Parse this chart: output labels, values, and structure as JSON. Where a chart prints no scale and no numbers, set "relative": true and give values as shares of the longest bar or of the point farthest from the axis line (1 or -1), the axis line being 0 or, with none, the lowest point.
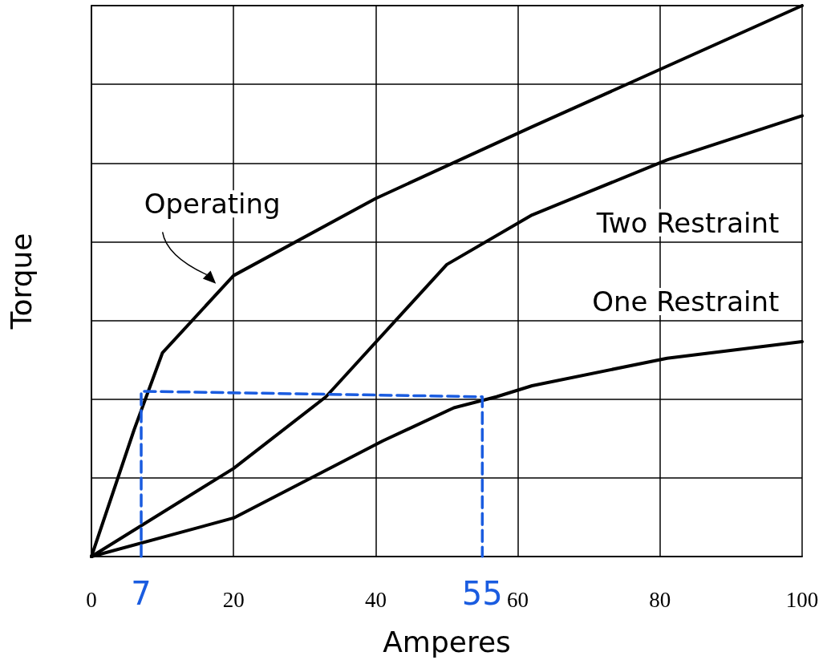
{
  "chart_data": {
    "type": "line",
    "xlabel": "Amperes",
    "ylabel": "Torque",
    "relative": true,
    "xlim": [
      0,
      100
    ],
    "xticks": [
      0,
      20,
      40,
      60,
      80,
      100
    ],
    "grid": true,
    "legend": false,
    "marker": "none",
    "line_style": "solid",
    "series": [
      {
        "name": "Operating",
        "color": "#000000",
        "x": [
          0,
          6,
          10,
          20,
          40,
          62,
          100
        ],
        "values": [
          0,
          0.23,
          0.37,
          0.51,
          0.65,
          0.78,
          1.0
        ]
      },
      {
        "name": "Two Restraint",
        "color": "#000000",
        "x": [
          0,
          20,
          33,
          50,
          62,
          81,
          100
        ],
        "values": [
          0,
          0.16,
          0.29,
          0.53,
          0.62,
          0.72,
          0.8
        ]
      },
      {
        "name": "One Restraint",
        "color": "#000000",
        "x": [
          0,
          20,
          41,
          51,
          57,
          62,
          81,
          100
        ],
        "values": [
          0,
          0.07,
          0.21,
          0.27,
          0.29,
          0.31,
          0.36,
          0.39
        ]
      },
      {
        "color": "#1a5ce0",
        "line_style": "dashed",
        "x": [
          7,
          7,
          55,
          55
        ],
        "values": [
          0,
          0.3,
          0.29,
          0
        ]
      }
    ],
    "annotations": [
      {
        "text": "7",
        "x": 7,
        "y": 0
      },
      {
        "text": "55",
        "x": 55,
        "y": 0
      }
    ]
  }
}
